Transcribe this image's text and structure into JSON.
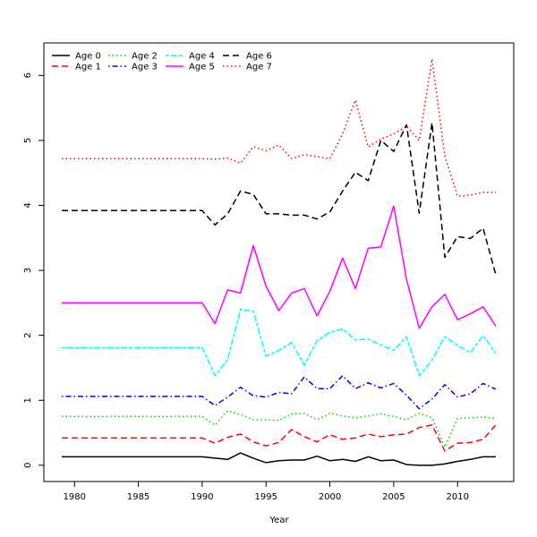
{
  "chart_data": {
    "type": "line",
    "title": "",
    "xlabel": "Year",
    "ylabel": "",
    "xlim": [
      1977.6,
      2014.4
    ],
    "ylim": [
      -0.25,
      6.5
    ],
    "xticks": [
      1980,
      1985,
      1990,
      1995,
      2000,
      2005,
      2010
    ],
    "yticks": [
      0,
      1,
      2,
      3,
      4,
      5,
      6
    ],
    "grid": false,
    "legend_position": "top-left",
    "x": [
      1979,
      1980,
      1981,
      1982,
      1983,
      1984,
      1985,
      1986,
      1987,
      1988,
      1989,
      1990,
      1991,
      1992,
      1993,
      1994,
      1995,
      1996,
      1997,
      1998,
      1999,
      2000,
      2001,
      2002,
      2003,
      2004,
      2005,
      2006,
      2007,
      2008,
      2009,
      2010,
      2011,
      2012,
      2013
    ],
    "series": [
      {
        "name": "Age 0",
        "color": "#000000",
        "dash": "solid",
        "values": [
          0.13,
          0.13,
          0.13,
          0.13,
          0.13,
          0.13,
          0.13,
          0.13,
          0.13,
          0.13,
          0.13,
          0.13,
          0.11,
          0.09,
          0.19,
          0.11,
          0.04,
          0.07,
          0.08,
          0.08,
          0.14,
          0.07,
          0.09,
          0.06,
          0.13,
          0.07,
          0.08,
          0.01,
          0.0,
          0.0,
          0.02,
          0.06,
          0.09,
          0.13,
          0.13
        ]
      },
      {
        "name": "Age 1",
        "color": "#ff0000",
        "dash": "longdash",
        "values": [
          0.42,
          0.42,
          0.42,
          0.42,
          0.42,
          0.42,
          0.42,
          0.42,
          0.42,
          0.42,
          0.42,
          0.42,
          0.34,
          0.43,
          0.48,
          0.36,
          0.3,
          0.35,
          0.55,
          0.44,
          0.36,
          0.47,
          0.4,
          0.42,
          0.48,
          0.44,
          0.47,
          0.48,
          0.58,
          0.62,
          0.22,
          0.34,
          0.35,
          0.4,
          0.62
        ]
      },
      {
        "name": "Age 2",
        "color": "#00cd00",
        "dash": "dotted",
        "values": [
          0.75,
          0.75,
          0.75,
          0.75,
          0.75,
          0.75,
          0.75,
          0.75,
          0.75,
          0.75,
          0.75,
          0.75,
          0.62,
          0.84,
          0.78,
          0.7,
          0.7,
          0.69,
          0.79,
          0.8,
          0.7,
          0.8,
          0.76,
          0.73,
          0.76,
          0.79,
          0.75,
          0.7,
          0.8,
          0.73,
          0.28,
          0.72,
          0.73,
          0.74,
          0.72
        ]
      },
      {
        "name": "Age 3",
        "color": "#0000ff",
        "dash": "dotdash",
        "values": [
          1.06,
          1.06,
          1.06,
          1.06,
          1.06,
          1.06,
          1.06,
          1.06,
          1.06,
          1.06,
          1.06,
          1.06,
          0.92,
          1.05,
          1.2,
          1.07,
          1.05,
          1.12,
          1.1,
          1.36,
          1.18,
          1.18,
          1.38,
          1.18,
          1.27,
          1.19,
          1.26,
          1.08,
          0.87,
          1.02,
          1.24,
          1.05,
          1.1,
          1.26,
          1.17
        ]
      },
      {
        "name": "Age 4",
        "color": "#00ffff",
        "dash": "twodash",
        "values": [
          1.81,
          1.81,
          1.81,
          1.81,
          1.81,
          1.81,
          1.81,
          1.81,
          1.81,
          1.81,
          1.81,
          1.81,
          1.38,
          1.63,
          2.4,
          2.37,
          1.68,
          1.77,
          1.89,
          1.54,
          1.92,
          2.05,
          2.1,
          1.93,
          1.94,
          1.85,
          1.77,
          1.98,
          1.38,
          1.62,
          1.98,
          1.85,
          1.73,
          2.0,
          1.72
        ]
      },
      {
        "name": "Age 5",
        "color": "#ff00ff",
        "dash": "solid",
        "values": [
          2.5,
          2.5,
          2.5,
          2.5,
          2.5,
          2.5,
          2.5,
          2.5,
          2.5,
          2.5,
          2.5,
          2.5,
          2.18,
          2.7,
          2.65,
          3.38,
          2.76,
          2.38,
          2.65,
          2.72,
          2.3,
          2.68,
          3.19,
          2.72,
          3.34,
          3.36,
          3.99,
          2.86,
          2.11,
          2.44,
          2.63,
          2.24,
          2.33,
          2.44,
          2.14
        ]
      },
      {
        "name": "Age 6",
        "color": "#000000",
        "dash": "longdash",
        "values": [
          3.92,
          3.92,
          3.92,
          3.92,
          3.92,
          3.92,
          3.92,
          3.92,
          3.92,
          3.92,
          3.92,
          3.92,
          3.7,
          3.87,
          4.22,
          4.17,
          3.87,
          3.87,
          3.85,
          3.85,
          3.79,
          3.9,
          4.22,
          4.51,
          4.38,
          5.0,
          4.83,
          5.24,
          3.88,
          5.27,
          3.2,
          3.52,
          3.49,
          3.65,
          2.93
        ]
      },
      {
        "name": "Age 7",
        "color": "#ff0000",
        "dash": "dotted",
        "values": [
          4.72,
          4.72,
          4.72,
          4.72,
          4.72,
          4.72,
          4.72,
          4.72,
          4.72,
          4.72,
          4.72,
          4.72,
          4.71,
          4.73,
          4.65,
          4.9,
          4.84,
          4.93,
          4.72,
          4.78,
          4.75,
          4.72,
          5.1,
          5.62,
          4.9,
          5.02,
          5.1,
          5.22,
          5.0,
          6.25,
          4.76,
          4.14,
          4.16,
          4.2,
          4.2
        ]
      }
    ]
  }
}
